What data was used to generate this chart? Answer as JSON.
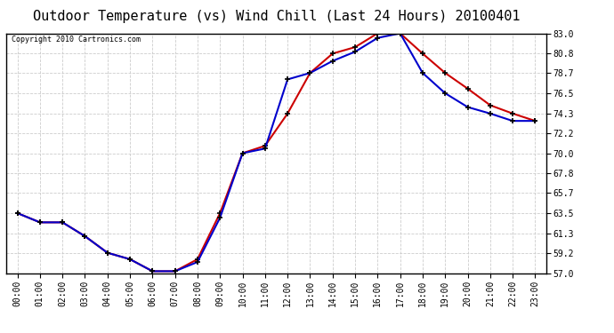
{
  "title": "Outdoor Temperature (vs) Wind Chill (Last 24 Hours) 20100401",
  "copyright": "Copyright 2010 Cartronics.com",
  "hours": [
    "00:00",
    "01:00",
    "02:00",
    "03:00",
    "04:00",
    "05:00",
    "06:00",
    "07:00",
    "08:00",
    "09:00",
    "10:00",
    "11:00",
    "12:00",
    "13:00",
    "14:00",
    "15:00",
    "16:00",
    "17:00",
    "18:00",
    "19:00",
    "20:00",
    "21:00",
    "22:00",
    "23:00"
  ],
  "outdoor_temp": [
    63.5,
    62.5,
    62.5,
    61.0,
    59.2,
    58.5,
    57.2,
    57.2,
    58.5,
    63.5,
    70.0,
    70.8,
    74.3,
    78.7,
    80.8,
    81.5,
    83.0,
    83.0,
    80.8,
    78.7,
    77.0,
    75.2,
    74.3,
    73.5
  ],
  "wind_chill": [
    63.5,
    62.5,
    62.5,
    61.0,
    59.2,
    58.5,
    57.2,
    57.2,
    58.2,
    63.0,
    70.0,
    70.5,
    78.0,
    78.7,
    80.0,
    81.0,
    82.5,
    83.0,
    78.7,
    76.5,
    75.0,
    74.3,
    73.5,
    73.5
  ],
  "temp_color": "#cc0000",
  "chill_color": "#0000cc",
  "bg_color": "#ffffff",
  "plot_bg": "#ffffff",
  "grid_color": "#cccccc",
  "ylim_min": 57.0,
  "ylim_max": 83.0,
  "yticks": [
    57.0,
    59.2,
    61.3,
    63.5,
    65.7,
    67.8,
    70.0,
    72.2,
    74.3,
    76.5,
    78.7,
    80.8,
    83.0
  ],
  "title_fontsize": 11,
  "copyright_fontsize": 6,
  "tick_fontsize": 7,
  "marker": "+",
  "markersize": 5,
  "linewidth": 1.5,
  "markeredgewidth": 1.2
}
